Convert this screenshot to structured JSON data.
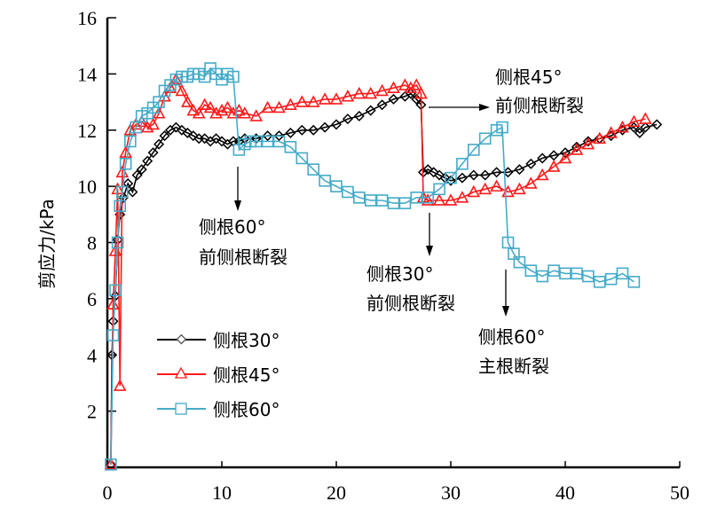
{
  "chart_data": {
    "type": "line",
    "title": "",
    "xlabel": "",
    "ylabel": "剪应力/kPa",
    "xlim": [
      0,
      50
    ],
    "ylim": [
      0,
      16
    ],
    "xticks": [
      0,
      10,
      20,
      30,
      40,
      50
    ],
    "yticks": [
      2,
      4,
      6,
      8,
      10,
      12,
      14,
      16
    ],
    "xtick_labels": [
      "0",
      "10",
      "20",
      "30",
      "40",
      "50"
    ],
    "ytick_labels": [
      "2",
      "4",
      "6",
      "8",
      "10",
      "12",
      "14",
      "16"
    ],
    "grid": false,
    "legend_position": "lower-left",
    "series": [
      {
        "name": "侧根30°",
        "color": "#000000",
        "marker": "diamond",
        "x": [
          0.3,
          0.4,
          0.5,
          0.7,
          0.9,
          1.1,
          1.4,
          1.8,
          2.2,
          2.6,
          3.0,
          3.5,
          4.0,
          4.5,
          5.0,
          5.5,
          6.0,
          6.5,
          7.0,
          7.5,
          8.0,
          8.5,
          9.0,
          9.5,
          10.0,
          10.5,
          11.0,
          11.5,
          12.0,
          13.0,
          14.0,
          15.0,
          16.0,
          17.0,
          18.0,
          19.0,
          20.0,
          21.0,
          22.0,
          23.0,
          24.0,
          25.0,
          26.0,
          26.5,
          27.0,
          27.4,
          27.6,
          28.0,
          28.5,
          29.0,
          29.5,
          30.0,
          31.0,
          32.0,
          33.0,
          34.0,
          35.0,
          36.0,
          37.0,
          38.0,
          39.0,
          40.0,
          41.0,
          42.0,
          43.0,
          44.0,
          45.0,
          46.0,
          46.5,
          47.0,
          48.0
        ],
        "y": [
          0.1,
          4.0,
          5.2,
          6.1,
          8.1,
          9.0,
          9.6,
          10.1,
          9.8,
          10.4,
          10.6,
          10.9,
          11.2,
          11.5,
          11.8,
          12.0,
          12.1,
          12.0,
          11.9,
          11.8,
          11.7,
          11.7,
          11.6,
          11.7,
          11.6,
          11.5,
          11.6,
          11.6,
          11.7,
          11.7,
          11.8,
          11.8,
          11.9,
          12.0,
          12.0,
          12.1,
          12.2,
          12.4,
          12.5,
          12.7,
          12.9,
          13.1,
          13.2,
          13.3,
          13.1,
          12.9,
          10.5,
          10.6,
          10.5,
          10.4,
          10.3,
          10.2,
          10.3,
          10.4,
          10.4,
          10.5,
          10.5,
          10.6,
          10.8,
          11.0,
          11.1,
          11.2,
          11.4,
          11.6,
          11.7,
          11.8,
          12.0,
          12.1,
          11.9,
          12.1,
          12.2
        ]
      },
      {
        "name": "侧根45°",
        "color": "#ff1a1a",
        "marker": "triangle",
        "x": [
          0.3,
          0.5,
          0.7,
          0.9,
          1.1,
          1.3,
          1.6,
          2.0,
          2.5,
          3.0,
          3.5,
          4.0,
          4.5,
          5.0,
          5.5,
          6.0,
          6.5,
          7.0,
          7.5,
          8.0,
          8.5,
          9.0,
          9.5,
          10.0,
          10.5,
          11.0,
          11.5,
          12.0,
          13.0,
          14.0,
          15.0,
          16.0,
          17.0,
          18.0,
          19.0,
          20.0,
          21.0,
          22.0,
          23.0,
          24.0,
          25.0,
          26.0,
          26.5,
          27.0,
          27.4,
          27.6,
          28.0,
          29.0,
          30.0,
          31.0,
          32.0,
          33.0,
          34.0,
          35.0,
          36.0,
          37.0,
          38.0,
          39.0,
          40.0,
          41.0,
          42.0,
          43.0,
          44.0,
          45.0,
          46.0,
          47.0
        ],
        "y": [
          0.1,
          5.8,
          7.7,
          9.9,
          2.9,
          10.5,
          11.2,
          12.0,
          12.2,
          12.3,
          12.1,
          12.2,
          12.6,
          13.2,
          13.5,
          13.8,
          13.4,
          13.0,
          12.7,
          12.6,
          12.9,
          12.8,
          12.6,
          12.7,
          12.8,
          12.6,
          12.7,
          12.6,
          12.5,
          12.8,
          12.8,
          12.9,
          13.0,
          13.0,
          13.1,
          13.1,
          13.2,
          13.3,
          13.3,
          13.4,
          13.5,
          13.6,
          13.5,
          13.6,
          13.3,
          9.6,
          9.5,
          9.5,
          9.5,
          9.6,
          9.8,
          9.9,
          10.0,
          9.8,
          9.9,
          10.1,
          10.4,
          10.7,
          11.0,
          11.3,
          11.5,
          11.7,
          11.9,
          12.1,
          12.3,
          12.4
        ]
      },
      {
        "name": "侧根60°",
        "color": "#45abc9",
        "marker": "square",
        "x": [
          0.3,
          0.5,
          0.7,
          0.9,
          1.1,
          1.3,
          1.6,
          2.0,
          2.5,
          3.0,
          3.5,
          4.0,
          4.5,
          5.0,
          5.5,
          6.0,
          6.5,
          7.0,
          7.5,
          8.0,
          8.5,
          9.0,
          9.5,
          10.0,
          10.5,
          11.0,
          11.5,
          12.0,
          12.5,
          13.0,
          14.0,
          15.0,
          16.0,
          17.0,
          18.0,
          19.0,
          20.0,
          21.0,
          22.0,
          23.0,
          24.0,
          25.0,
          26.0,
          27.0,
          28.0,
          29.0,
          30.0,
          31.0,
          32.0,
          33.0,
          34.0,
          34.5,
          35.0,
          35.5,
          36.0,
          37.0,
          38.0,
          39.0,
          40.0,
          41.0,
          42.0,
          43.0,
          44.0,
          45.0,
          46.0
        ],
        "y": [
          0.1,
          4.7,
          6.3,
          8.0,
          9.3,
          9.8,
          10.8,
          11.6,
          12.1,
          12.5,
          12.6,
          12.8,
          13.0,
          13.4,
          13.6,
          13.8,
          13.9,
          13.9,
          14.0,
          14.0,
          13.9,
          14.2,
          14.0,
          13.8,
          14.0,
          13.9,
          11.3,
          11.5,
          11.6,
          11.6,
          11.6,
          11.6,
          11.4,
          11.0,
          10.6,
          10.2,
          10.0,
          9.8,
          9.6,
          9.5,
          9.5,
          9.4,
          9.4,
          9.6,
          9.6,
          9.9,
          10.3,
          10.8,
          11.3,
          11.7,
          12.0,
          12.1,
          8.0,
          7.6,
          7.3,
          7.0,
          6.8,
          7.0,
          6.9,
          6.9,
          6.8,
          6.6,
          6.7,
          6.9,
          6.6
        ]
      }
    ],
    "annotations": [
      {
        "line1": "侧根60°",
        "line2": "前侧根断裂",
        "points_to_x": 11.5,
        "points_to_y": 11.5
      },
      {
        "line1": "侧根45°",
        "line2": "前侧根断裂",
        "points_to_x": 27.6,
        "points_to_y": 12.8
      },
      {
        "line1": "侧根30°",
        "line2": "前侧根断裂",
        "points_to_x": 27.9,
        "points_to_y": 9.4
      },
      {
        "line1": "侧根60°",
        "line2": "主根断裂",
        "points_to_x": 34.8,
        "points_to_y": 7.0
      }
    ]
  }
}
